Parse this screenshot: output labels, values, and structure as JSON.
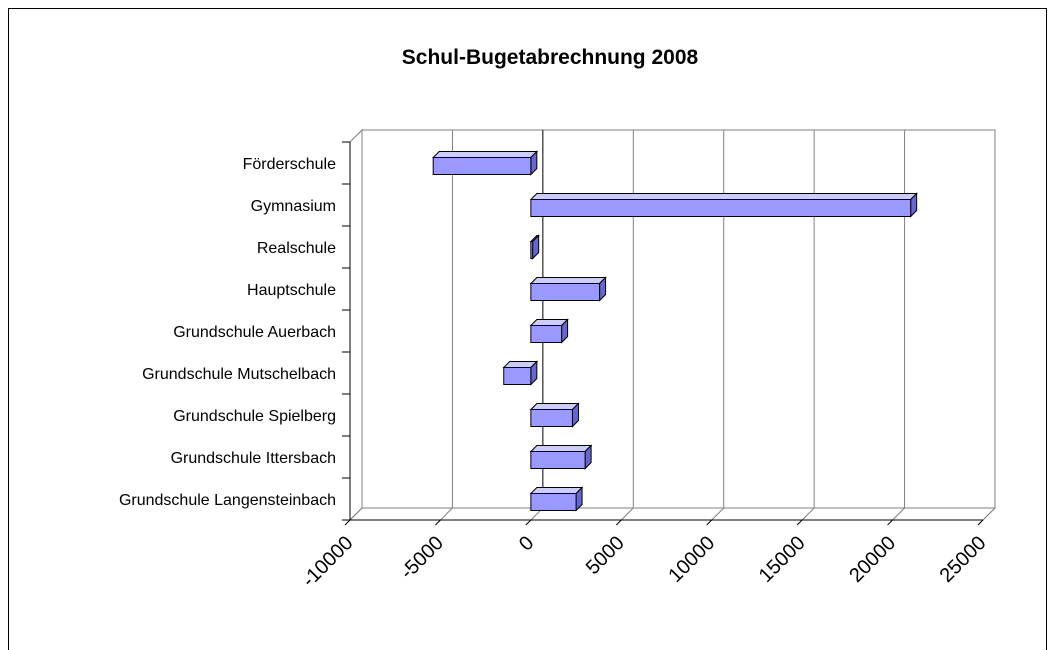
{
  "chart_data": {
    "type": "bar3d_horizontal",
    "title": "Schul-Bugetabrechnung 2008",
    "categories": [
      "Förderschule",
      "Gymnasium",
      "Realschule",
      "Hauptschule",
      "Grundschule Auerbach",
      "Grundschule Mutschelbach",
      "Grundschule Spielberg",
      "Grundschule Ittersbach",
      "Grundschule Langensteinbach"
    ],
    "values": [
      -5400,
      21000,
      100,
      3800,
      1700,
      -1500,
      2300,
      3000,
      2500
    ],
    "color": "#9999ff",
    "xlim": [
      -10000,
      25000
    ],
    "xticks": [
      -10000,
      -5000,
      0,
      5000,
      10000,
      15000,
      20000,
      25000
    ],
    "grid": true
  }
}
